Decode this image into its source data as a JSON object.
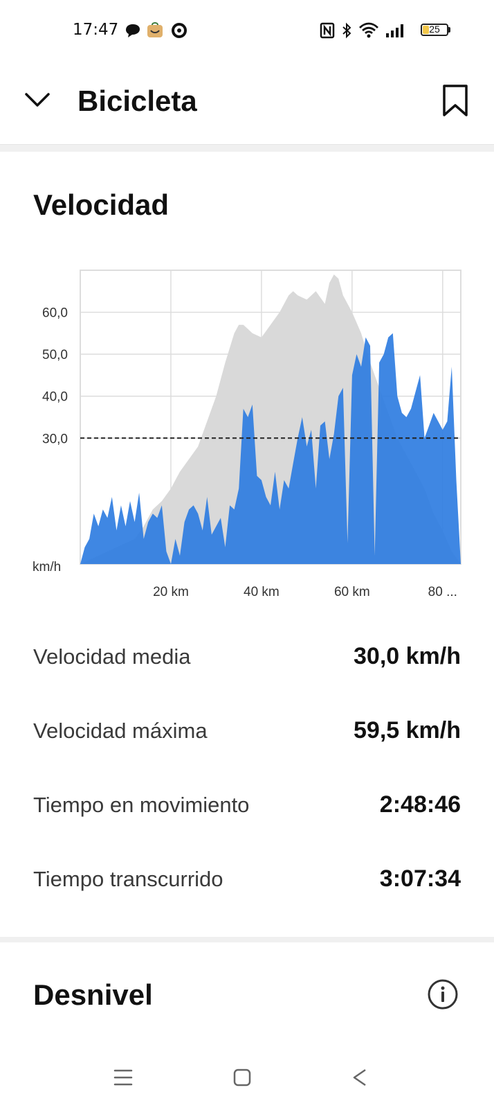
{
  "status_bar": {
    "time": "17:47",
    "battery_level": "25",
    "icons": [
      "chat-bubble-icon",
      "app-bag-icon",
      "chrome-icon",
      "nfc-icon",
      "bluetooth-icon",
      "wifi-icon",
      "signal-icon",
      "battery-icon"
    ]
  },
  "header": {
    "title": "Bicicleta",
    "back_icon": "chevron-down-icon",
    "bookmark_icon": "bookmark-icon"
  },
  "speed_section": {
    "title": "Velocidad"
  },
  "chart_data": {
    "type": "area",
    "title": "",
    "xlabel": "",
    "ylabel": "km/h",
    "x_ticks": [
      "20 km",
      "40 km",
      "60 km",
      "80 ..."
    ],
    "y_ticks": [
      "30,0",
      "40,0",
      "50,0",
      "60,0"
    ],
    "xlim": [
      0,
      84
    ],
    "ylim": [
      0,
      70
    ],
    "reference_line": 30.0,
    "colors": {
      "speed": "#2f7de1",
      "elevation": "#d9d9d9",
      "grid": "#dddddd",
      "reference": "#222222"
    },
    "series": [
      {
        "id": "speed",
        "x": [
          0,
          1,
          2,
          3,
          4,
          5,
          6,
          7,
          8,
          9,
          10,
          11,
          12,
          13,
          14,
          15,
          16,
          17,
          18,
          19,
          20,
          21,
          22,
          23,
          24,
          25,
          26,
          27,
          28,
          29,
          30,
          31,
          32,
          33,
          34,
          35,
          36,
          37,
          38,
          39,
          40,
          41,
          42,
          43,
          44,
          45,
          46,
          47,
          48,
          49,
          50,
          51,
          52,
          53,
          54,
          55,
          56,
          57,
          58,
          59,
          60,
          61,
          62,
          63,
          64,
          65,
          66,
          67,
          68,
          69,
          70,
          71,
          72,
          73,
          74,
          75,
          76,
          77,
          78,
          79,
          80,
          81,
          82,
          83,
          84
        ],
        "values": [
          0,
          4,
          6,
          12,
          9,
          13,
          11,
          16,
          8,
          14,
          9,
          15,
          10,
          17,
          6,
          10,
          12,
          11,
          14,
          3,
          0,
          6,
          2,
          10,
          13,
          14,
          12,
          8,
          16,
          7,
          9,
          11,
          4,
          14,
          13,
          18,
          37,
          35,
          38,
          21,
          20,
          16,
          14,
          22,
          13,
          20,
          18,
          24,
          30,
          35,
          28,
          32,
          18,
          33,
          34,
          25,
          31,
          40,
          42,
          5,
          45,
          50,
          47,
          54,
          52,
          2,
          48,
          50,
          54,
          55,
          40,
          36,
          35,
          37,
          41,
          45,
          30,
          33,
          36,
          34,
          32,
          34,
          47,
          20,
          0
        ]
      },
      {
        "id": "elevation",
        "x": [
          0,
          4,
          8,
          12,
          14,
          16,
          18,
          20,
          22,
          24,
          26,
          28,
          30,
          32,
          34,
          35,
          36,
          37,
          38,
          40,
          42,
          44,
          46,
          47,
          48,
          50,
          52,
          54,
          55,
          56,
          57,
          58,
          60,
          62,
          64,
          66,
          68,
          70,
          72,
          74,
          76,
          78,
          80,
          82,
          84
        ],
        "values": [
          0,
          2,
          4,
          6,
          9,
          13,
          15,
          18,
          22,
          25,
          28,
          34,
          40,
          48,
          55,
          57,
          57,
          56,
          55,
          54,
          57,
          60,
          64,
          65,
          64,
          63,
          65,
          62,
          67,
          69,
          68,
          64,
          60,
          55,
          48,
          42,
          36,
          30,
          26,
          22,
          18,
          12,
          8,
          3,
          0
        ]
      }
    ]
  },
  "stats": [
    {
      "label": "Velocidad media",
      "value": "30,0 km/h"
    },
    {
      "label": "Velocidad máxima",
      "value": "59,5 km/h"
    },
    {
      "label": "Tiempo en movimiento",
      "value": "2:48:46"
    },
    {
      "label": "Tiempo transcurrido",
      "value": "3:07:34"
    }
  ],
  "elevation_section": {
    "title": "Desnivel",
    "info_icon": "info-icon"
  },
  "nav_bar": {
    "icons": [
      "menu-icon",
      "home-icon",
      "back-icon"
    ]
  }
}
